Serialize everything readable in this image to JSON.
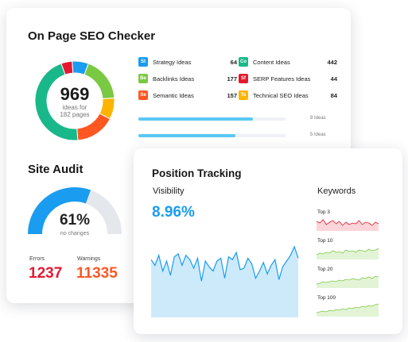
{
  "seo": {
    "title": "On Page SEO Checker",
    "donut": {
      "value": "969",
      "sub1": "ideas for",
      "sub2": "182 pages"
    },
    "ideas": [
      {
        "abbr": "St",
        "label": "Strategy Ideas",
        "count": "64",
        "color": "#1a9cf0"
      },
      {
        "abbr": "Be",
        "label": "Backlinks Ideas",
        "count": "177",
        "color": "#7ac943"
      },
      {
        "abbr": "Se",
        "label": "Semantic Ideas",
        "count": "157",
        "color": "#ff5722"
      },
      {
        "abbr": "Co",
        "label": "Content Ideas",
        "count": "442",
        "color": "#19b88a"
      },
      {
        "abbr": "Sf",
        "label": "SERP Features Ideas",
        "count": "44",
        "color": "#e4192f"
      },
      {
        "abbr": "Te",
        "label": "Technical SEO Ideas",
        "count": "84",
        "color": "#ffb400"
      }
    ],
    "bars": [
      {
        "label": "8 Ideas",
        "fill": 0.78
      },
      {
        "label": "5 Ideas",
        "fill": 0.66
      }
    ]
  },
  "audit": {
    "title": "Site Audit",
    "percent": "61%",
    "percent_value": 0.61,
    "sub": "no changes",
    "errors_label": "Errors",
    "errors_value": "1237",
    "warnings_label": "Warnings",
    "warnings_value": "11335"
  },
  "position": {
    "title": "Position Tracking",
    "visibility_label": "Visibility",
    "visibility_value": "8.96%",
    "keywords_label": "Keywords",
    "keywords": [
      "Top 3",
      "Top 10",
      "Top 20",
      "Top 100"
    ]
  },
  "colors": {
    "blue": "#1a9cf0",
    "green": "#7ac943",
    "red": "#e4192f",
    "orange": "#ff5722",
    "teal": "#19b88a",
    "yellow": "#ffb400",
    "gray": "#e4e7ec"
  }
}
